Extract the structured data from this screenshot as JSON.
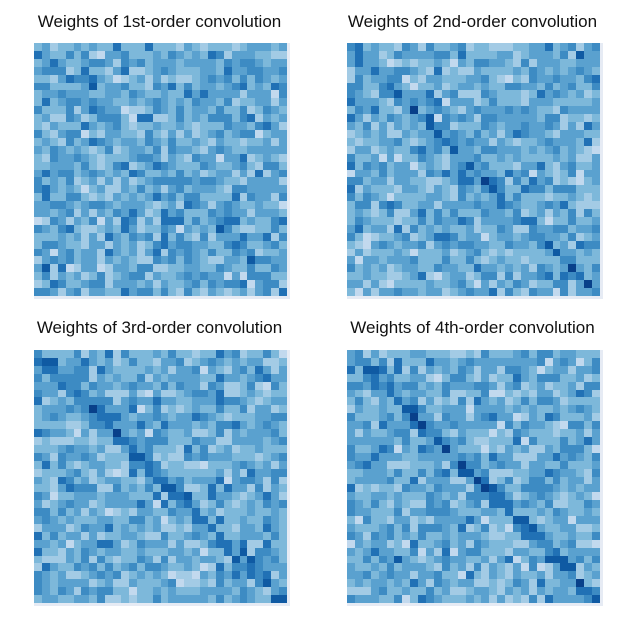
{
  "chart_data": [
    {
      "type": "heatmap",
      "title": "Weights of 1st-order convolution",
      "colormap": "Blues",
      "rows": 32,
      "cols": 32,
      "value_range": [
        0,
        9
      ],
      "diagonal": "weak",
      "params": {
        "seed": 11,
        "diag": 0.9,
        "noise": 1.0
      },
      "xlabel": "",
      "ylabel": "",
      "axes": "off",
      "legend": "none"
    },
    {
      "type": "heatmap",
      "title": "Weights of 2nd-order convolution",
      "colormap": "Blues",
      "rows": 32,
      "cols": 32,
      "value_range": [
        0,
        9
      ],
      "diagonal": "moderate",
      "params": {
        "seed": 23,
        "diag": 1.8,
        "noise": 1.0
      },
      "xlabel": "",
      "ylabel": "",
      "axes": "off",
      "legend": "none"
    },
    {
      "type": "heatmap",
      "title": "Weights of 3rd-order convolution",
      "colormap": "Blues",
      "rows": 32,
      "cols": 32,
      "value_range": [
        0,
        9
      ],
      "diagonal": "strong",
      "params": {
        "seed": 37,
        "diag": 2.6,
        "noise": 1.0
      },
      "xlabel": "",
      "ylabel": "",
      "axes": "off",
      "legend": "none"
    },
    {
      "type": "heatmap",
      "title": "Weights of 4th-order convolution",
      "colormap": "Blues",
      "rows": 32,
      "cols": 32,
      "value_range": [
        0,
        9
      ],
      "diagonal": "strong",
      "params": {
        "seed": 53,
        "diag": 3.0,
        "noise": 1.0
      },
      "xlabel": "",
      "ylabel": "",
      "axes": "off",
      "legend": "none"
    }
  ],
  "colors": {
    "palette": [
      "#f2f7fd",
      "#dae8f6",
      "#c2d9ee",
      "#a3cbe5",
      "#7db8da",
      "#5aa1cf",
      "#3d8bc3",
      "#2171b5",
      "#0f5aa3",
      "#08408a"
    ],
    "frame": "#e6ebf4",
    "title_text": "#111111"
  },
  "panels": [
    {
      "title": "Weights of 1st-order convolution"
    },
    {
      "title": "Weights of 2nd-order convolution"
    },
    {
      "title": "Weights of 3rd-order convolution"
    },
    {
      "title": "Weights of 4th-order convolution"
    }
  ]
}
